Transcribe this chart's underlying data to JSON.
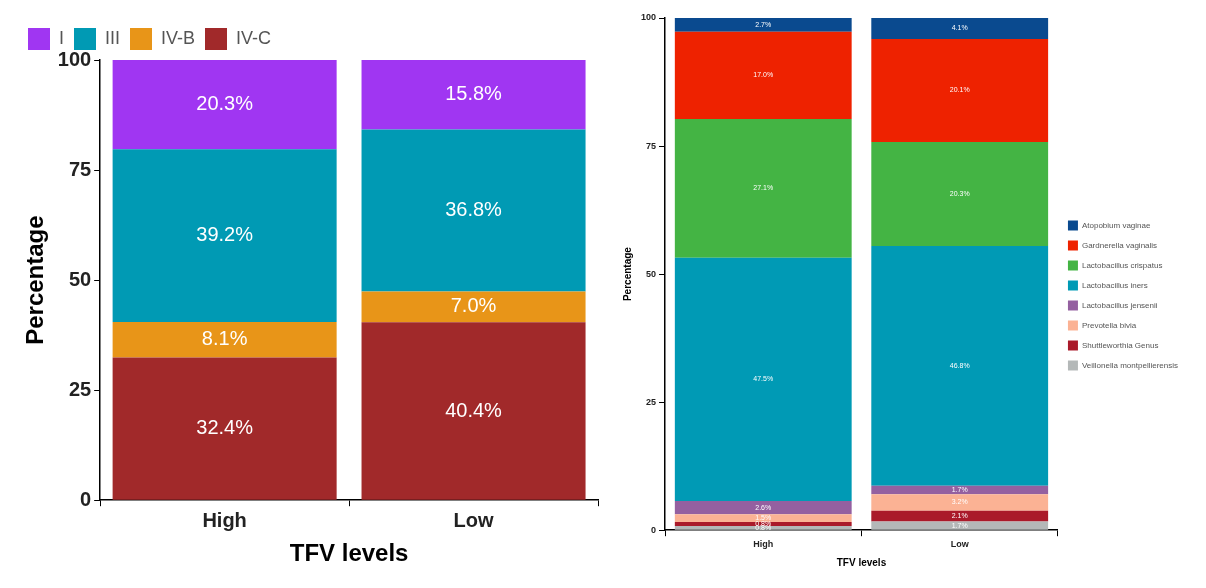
{
  "chart_data": [
    {
      "type": "bar",
      "stacked": true,
      "categories": [
        "High",
        "Low"
      ],
      "xlabel": "TFV levels",
      "ylabel": "Percentage",
      "ylim": [
        0,
        100
      ],
      "yticks": [
        0,
        25,
        50,
        75,
        100
      ],
      "grid": false,
      "legend": "top left",
      "series": [
        {
          "name": "IV-C",
          "color": "#a1292a",
          "values": [
            32.4,
            40.4
          ],
          "value_labels": [
            "32.4%",
            "40.4%"
          ]
        },
        {
          "name": "IV-B",
          "color": "#e89518",
          "values": [
            8.1,
            7.0
          ],
          "value_labels": [
            "8.1%",
            "7.0%"
          ]
        },
        {
          "name": "III",
          "color": "#009ab4",
          "values": [
            39.2,
            36.8
          ],
          "value_labels": [
            "39.2%",
            "36.8%"
          ]
        },
        {
          "name": "I",
          "color": "#a036f2",
          "values": [
            20.3,
            15.8
          ],
          "value_labels": [
            "20.3%",
            "15.8%"
          ]
        }
      ]
    },
    {
      "type": "bar",
      "stacked": true,
      "categories": [
        "High",
        "Low"
      ],
      "xlabel": "TFV levels",
      "ylabel": "Percentage",
      "ylim": [
        0,
        100
      ],
      "yticks": [
        0,
        25,
        50,
        75,
        100
      ],
      "grid": false,
      "legend": "right",
      "series": [
        {
          "name": "Veillonella montpellierensis",
          "color": "#b4b8b8",
          "values": [
            0.8,
            1.7
          ],
          "value_labels": [
            "0.8%",
            "1.7%"
          ]
        },
        {
          "name": "Shuttleworthia Genus",
          "color": "#aa1a2a",
          "values": [
            0.8,
            2.1
          ],
          "value_labels": [
            "0.8%",
            "2.1%"
          ]
        },
        {
          "name": "Prevotella bivia",
          "color": "#fbb294",
          "values": [
            1.5,
            3.2
          ],
          "value_labels": [
            "1.5%",
            "3.2%"
          ]
        },
        {
          "name": "Lactobacillus jensenii",
          "color": "#9460a0",
          "values": [
            2.6,
            1.7
          ],
          "value_labels": [
            "2.6%",
            "1.7%"
          ]
        },
        {
          "name": "Lactobacillus iners",
          "color": "#009ab5",
          "values": [
            47.5,
            46.8
          ],
          "value_labels": [
            "47.5%",
            "46.8%"
          ]
        },
        {
          "name": "Lactobacillus crispatus",
          "color": "#44b444",
          "values": [
            27.1,
            20.3
          ],
          "value_labels": [
            "27.1%",
            "20.3%"
          ]
        },
        {
          "name": "Gardnerella vaginalis",
          "color": "#ee2200",
          "values": [
            17.0,
            20.1
          ],
          "value_labels": [
            "17.0%",
            "20.1%"
          ]
        },
        {
          "name": "Atopobium vaginae",
          "color": "#0a4a8f",
          "values": [
            2.7,
            4.1
          ],
          "value_labels": [
            "2.7%",
            "4.1%"
          ]
        }
      ]
    }
  ]
}
